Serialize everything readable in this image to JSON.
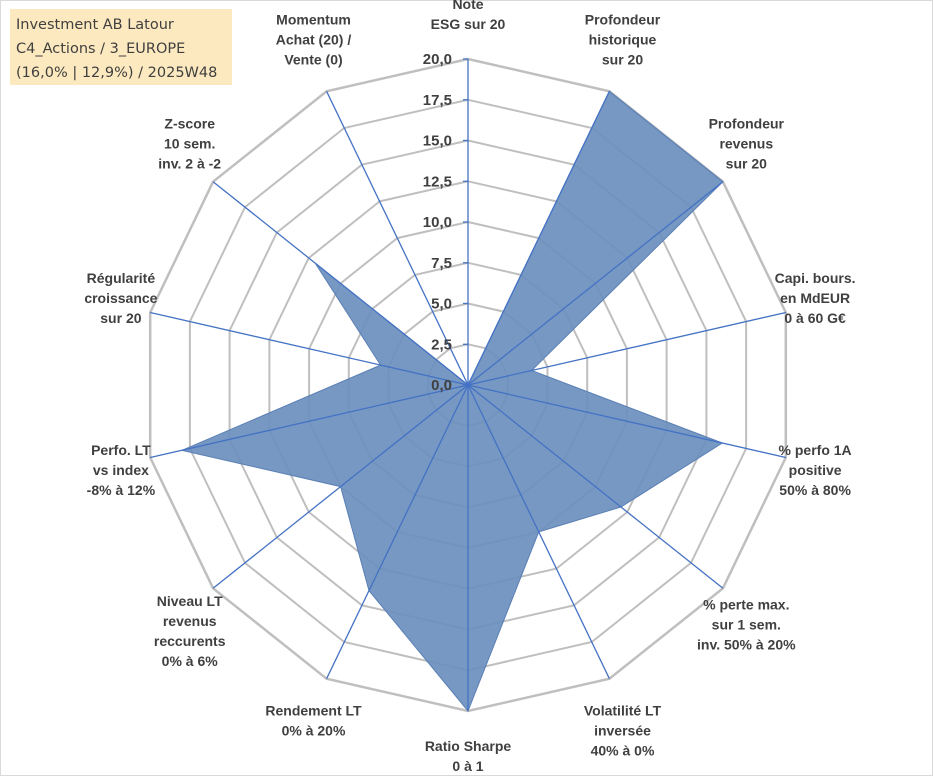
{
  "title_box": {
    "line1": "Investment AB Latour",
    "line2": "C4_Actions / 3_EUROPE",
    "line3": "(16,0% | 12,9%) / 2025W48"
  },
  "colors": {
    "fill": "#6b8fbe",
    "fill_stroke": "#5a7fb4",
    "spoke": "#4472c4",
    "grid": "#bfbfbf",
    "title_bg": "#fde9bf"
  },
  "chart_data": {
    "type": "radar",
    "grid": true,
    "rmin": 0,
    "rmax": 20,
    "ticks": [
      "0,0",
      "2,5",
      "5,0",
      "7,5",
      "10,0",
      "12,5",
      "15,0",
      "17,5",
      "20,0"
    ],
    "tick_values": [
      0,
      2.5,
      5,
      7.5,
      10,
      12.5,
      15,
      17.5,
      20
    ],
    "categories": [
      [
        "Note",
        "ESG sur 20"
      ],
      [
        "Profondeur",
        "historique",
        "sur 20"
      ],
      [
        "Profondeur",
        "revenus",
        "sur 20"
      ],
      [
        "Capi. bours.",
        "en MdEUR",
        "0 à 60 G€"
      ],
      [
        "% perfo 1A",
        "positive",
        "50% à 80%"
      ],
      [
        "% perte max.",
        "sur 1 sem.",
        "inv. 50% à 20%"
      ],
      [
        "Volatilité LT",
        "inversée",
        "40% à 0%"
      ],
      [
        "Ratio Sharpe",
        "0 à 1"
      ],
      [
        "Rendement LT",
        "0% à 20%"
      ],
      [
        "Niveau LT",
        "revenus",
        "reccurents",
        "0% à 6%"
      ],
      [
        "Perfo. LT",
        "vs index",
        "-8% à 12%"
      ],
      [
        "Régularité",
        "croissance",
        "sur 20"
      ],
      [
        "Z-score",
        "10 sem.",
        "inv. 2 à -2"
      ],
      [
        "Momentum",
        "Achat (20) /",
        "Vente (0)"
      ]
    ],
    "series": [
      {
        "values": [
          0,
          20,
          20,
          4,
          16,
          12,
          10,
          20,
          14,
          10,
          18,
          5.5,
          12,
          0
        ]
      }
    ]
  }
}
